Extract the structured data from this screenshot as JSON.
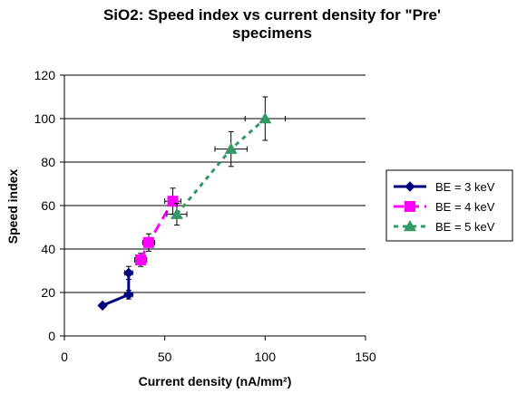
{
  "chart_data": {
    "type": "line",
    "title_lines": [
      "SiO2: Speed index vs current density for \"Pre'",
      "specimens"
    ],
    "xlabel": "Current density (nA/mm²)",
    "ylabel": "Speed index",
    "xlim": [
      0,
      150
    ],
    "ylim": [
      0,
      120
    ],
    "x_ticks": [
      0,
      50,
      100,
      150
    ],
    "y_ticks": [
      0,
      20,
      40,
      60,
      80,
      100,
      120
    ],
    "grid": "horizontal",
    "legend_position": "right",
    "series": [
      {
        "name": "BE = 3 keV",
        "color": "#000080",
        "marker": "diamond",
        "line": "solid",
        "x": [
          19,
          32,
          32
        ],
        "y": [
          14,
          19,
          29
        ],
        "x_err": [
          0,
          2,
          2
        ],
        "y_err": [
          0,
          2,
          3
        ]
      },
      {
        "name": "BE = 4 keV",
        "color": "#FF00FF",
        "marker": "square",
        "line": "dashed",
        "x": [
          38,
          42,
          54
        ],
        "y": [
          35,
          43,
          62
        ],
        "x_err": [
          3,
          3,
          4
        ],
        "y_err": [
          3,
          4,
          6
        ]
      },
      {
        "name": "BE = 5 keV",
        "color": "#339966",
        "marker": "triangle",
        "line": "dotted",
        "x": [
          56,
          83,
          100
        ],
        "y": [
          56,
          86,
          100
        ],
        "x_err": [
          5,
          8,
          10
        ],
        "y_err": [
          5,
          8,
          10
        ]
      }
    ]
  }
}
